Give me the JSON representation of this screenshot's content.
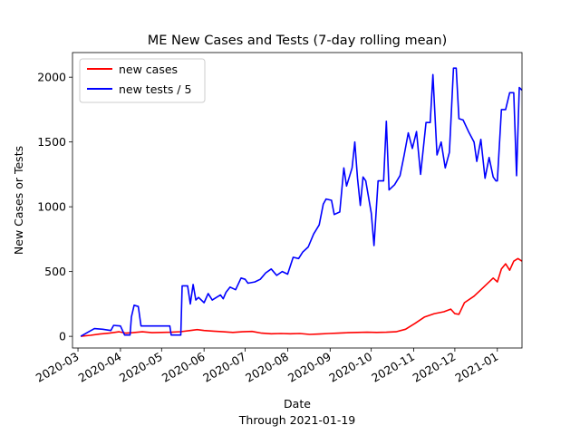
{
  "chart_data": {
    "type": "line",
    "title": "ME New Cases and Tests (7-day rolling mean)",
    "xlabel": "Date",
    "xlabel_sub": "Through 2021-01-19",
    "ylabel": "New Cases or Tests",
    "xlim": [
      "2020-02-26",
      "2021-01-19"
    ],
    "ylim": [
      -90,
      2190
    ],
    "x_ticks": [
      "2020-03",
      "2020-04",
      "2020-05",
      "2020-06",
      "2020-07",
      "2020-08",
      "2020-09",
      "2020-10",
      "2020-11",
      "2020-12",
      "2021-01"
    ],
    "y_ticks": [
      0,
      500,
      1000,
      1500,
      2000
    ],
    "legend_position": "top-left",
    "series": [
      {
        "name": "new cases",
        "color": "#ff0000",
        "points": [
          [
            "2020-03-03",
            0
          ],
          [
            "2020-03-10",
            8
          ],
          [
            "2020-03-17",
            18
          ],
          [
            "2020-03-24",
            25
          ],
          [
            "2020-03-31",
            35
          ],
          [
            "2020-04-05",
            25
          ],
          [
            "2020-04-10",
            28
          ],
          [
            "2020-04-17",
            35
          ],
          [
            "2020-04-24",
            28
          ],
          [
            "2020-05-01",
            30
          ],
          [
            "2020-05-08",
            32
          ],
          [
            "2020-05-15",
            36
          ],
          [
            "2020-05-22",
            45
          ],
          [
            "2020-05-27",
            52
          ],
          [
            "2020-06-01",
            45
          ],
          [
            "2020-06-08",
            40
          ],
          [
            "2020-06-15",
            35
          ],
          [
            "2020-06-22",
            30
          ],
          [
            "2020-06-29",
            35
          ],
          [
            "2020-07-06",
            38
          ],
          [
            "2020-07-13",
            25
          ],
          [
            "2020-07-20",
            20
          ],
          [
            "2020-07-27",
            22
          ],
          [
            "2020-08-03",
            20
          ],
          [
            "2020-08-10",
            22
          ],
          [
            "2020-08-17",
            15
          ],
          [
            "2020-08-24",
            18
          ],
          [
            "2020-08-31",
            22
          ],
          [
            "2020-09-07",
            25
          ],
          [
            "2020-09-14",
            28
          ],
          [
            "2020-09-21",
            30
          ],
          [
            "2020-09-28",
            32
          ],
          [
            "2020-10-05",
            30
          ],
          [
            "2020-10-12",
            32
          ],
          [
            "2020-10-19",
            35
          ],
          [
            "2020-10-26",
            55
          ],
          [
            "2020-11-02",
            100
          ],
          [
            "2020-11-09",
            150
          ],
          [
            "2020-11-16",
            175
          ],
          [
            "2020-11-23",
            190
          ],
          [
            "2020-11-28",
            210
          ],
          [
            "2020-12-01",
            175
          ],
          [
            "2020-12-04",
            170
          ],
          [
            "2020-12-08",
            260
          ],
          [
            "2020-12-15",
            310
          ],
          [
            "2020-12-22",
            380
          ],
          [
            "2020-12-29",
            450
          ],
          [
            "2021-01-01",
            420
          ],
          [
            "2021-01-04",
            520
          ],
          [
            "2021-01-07",
            560
          ],
          [
            "2021-01-10",
            510
          ],
          [
            "2021-01-13",
            580
          ],
          [
            "2021-01-16",
            600
          ],
          [
            "2021-01-19",
            580
          ]
        ]
      },
      {
        "name": "new tests / 5",
        "color": "#0000ff",
        "points": [
          [
            "2020-03-03",
            0
          ],
          [
            "2020-03-08",
            30
          ],
          [
            "2020-03-13",
            60
          ],
          [
            "2020-03-19",
            55
          ],
          [
            "2020-03-25",
            45
          ],
          [
            "2020-03-27",
            85
          ],
          [
            "2020-04-01",
            80
          ],
          [
            "2020-04-04",
            10
          ],
          [
            "2020-04-08",
            10
          ],
          [
            "2020-04-09",
            150
          ],
          [
            "2020-04-11",
            240
          ],
          [
            "2020-04-14",
            230
          ],
          [
            "2020-04-16",
            80
          ],
          [
            "2020-04-23",
            80
          ],
          [
            "2020-04-30",
            80
          ],
          [
            "2020-05-07",
            80
          ],
          [
            "2020-05-08",
            10
          ],
          [
            "2020-05-12",
            10
          ],
          [
            "2020-05-15",
            10
          ],
          [
            "2020-05-16",
            390
          ],
          [
            "2020-05-20",
            390
          ],
          [
            "2020-05-22",
            250
          ],
          [
            "2020-05-24",
            400
          ],
          [
            "2020-05-26",
            280
          ],
          [
            "2020-05-28",
            300
          ],
          [
            "2020-06-01",
            260
          ],
          [
            "2020-06-04",
            330
          ],
          [
            "2020-06-07",
            280
          ],
          [
            "2020-06-10",
            300
          ],
          [
            "2020-06-13",
            320
          ],
          [
            "2020-06-15",
            290
          ],
          [
            "2020-06-17",
            340
          ],
          [
            "2020-06-20",
            380
          ],
          [
            "2020-06-24",
            360
          ],
          [
            "2020-06-28",
            450
          ],
          [
            "2020-07-01",
            440
          ],
          [
            "2020-07-03",
            410
          ],
          [
            "2020-07-08",
            420
          ],
          [
            "2020-07-12",
            440
          ],
          [
            "2020-07-16",
            490
          ],
          [
            "2020-07-20",
            520
          ],
          [
            "2020-07-24",
            470
          ],
          [
            "2020-07-28",
            500
          ],
          [
            "2020-08-01",
            480
          ],
          [
            "2020-08-05",
            610
          ],
          [
            "2020-08-09",
            600
          ],
          [
            "2020-08-12",
            650
          ],
          [
            "2020-08-16",
            690
          ],
          [
            "2020-08-20",
            790
          ],
          [
            "2020-08-24",
            860
          ],
          [
            "2020-08-27",
            1020
          ],
          [
            "2020-08-29",
            1060
          ],
          [
            "2020-09-02",
            1050
          ],
          [
            "2020-09-04",
            940
          ],
          [
            "2020-09-08",
            960
          ],
          [
            "2020-09-11",
            1300
          ],
          [
            "2020-09-13",
            1160
          ],
          [
            "2020-09-17",
            1300
          ],
          [
            "2020-09-19",
            1500
          ],
          [
            "2020-09-21",
            1220
          ],
          [
            "2020-09-23",
            1010
          ],
          [
            "2020-09-25",
            1230
          ],
          [
            "2020-09-27",
            1200
          ],
          [
            "2020-10-01",
            950
          ],
          [
            "2020-10-03",
            700
          ],
          [
            "2020-10-06",
            1200
          ],
          [
            "2020-10-10",
            1200
          ],
          [
            "2020-10-12",
            1660
          ],
          [
            "2020-10-14",
            1130
          ],
          [
            "2020-10-18",
            1170
          ],
          [
            "2020-10-22",
            1240
          ],
          [
            "2020-10-25",
            1400
          ],
          [
            "2020-10-28",
            1570
          ],
          [
            "2020-10-31",
            1450
          ],
          [
            "2020-11-03",
            1580
          ],
          [
            "2020-11-06",
            1250
          ],
          [
            "2020-11-10",
            1650
          ],
          [
            "2020-11-13",
            1650
          ],
          [
            "2020-11-15",
            2020
          ],
          [
            "2020-11-18",
            1400
          ],
          [
            "2020-11-21",
            1500
          ],
          [
            "2020-11-24",
            1300
          ],
          [
            "2020-11-27",
            1420
          ],
          [
            "2020-11-30",
            2070
          ],
          [
            "2020-12-02",
            2070
          ],
          [
            "2020-12-04",
            1680
          ],
          [
            "2020-12-07",
            1670
          ],
          [
            "2020-12-11",
            1580
          ],
          [
            "2020-12-15",
            1500
          ],
          [
            "2020-12-17",
            1350
          ],
          [
            "2020-12-20",
            1520
          ],
          [
            "2020-12-23",
            1220
          ],
          [
            "2020-12-26",
            1380
          ],
          [
            "2020-12-29",
            1230
          ],
          [
            "2020-12-31",
            1200
          ],
          [
            "2021-01-01",
            1200
          ],
          [
            "2021-01-04",
            1750
          ],
          [
            "2021-01-07",
            1750
          ],
          [
            "2021-01-10",
            1880
          ],
          [
            "2021-01-13",
            1880
          ],
          [
            "2021-01-15",
            1240
          ],
          [
            "2021-01-17",
            1920
          ],
          [
            "2021-01-19",
            1900
          ]
        ]
      }
    ]
  }
}
